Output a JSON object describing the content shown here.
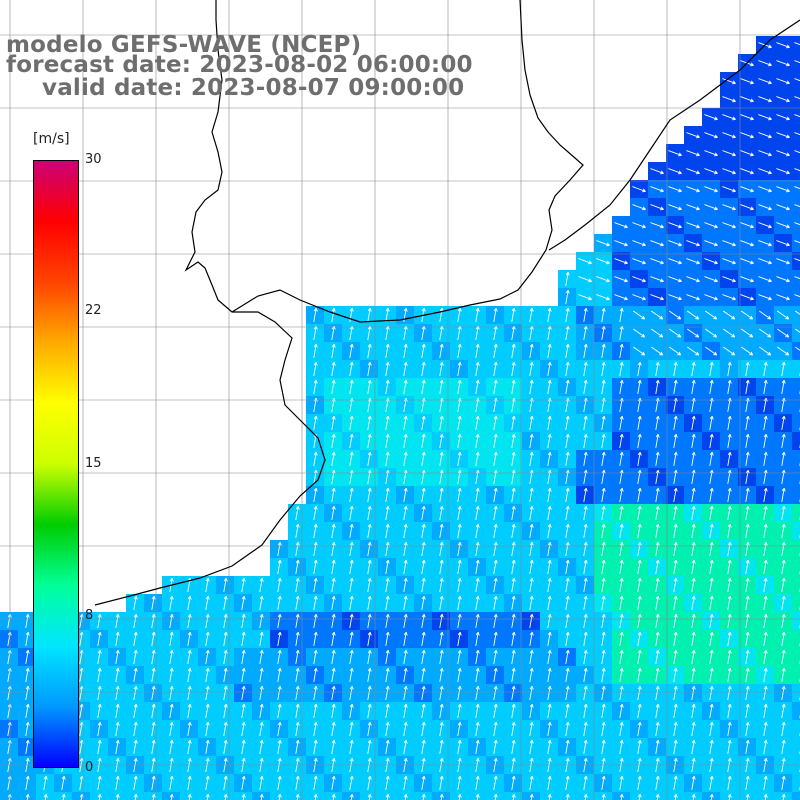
{
  "header": {
    "model": "modelo GEFS-WAVE (NCEP)",
    "forecast": "forecast date: 2023-08-02 06:00:00",
    "valid": "valid date: 2023-08-07 09:00:00"
  },
  "colorbar": {
    "unit": "[m/s]",
    "ticks": [
      "30",
      "22",
      "15",
      "8",
      "0"
    ],
    "colors": [
      "#0000ff",
      "#0099ff",
      "#00e6ff",
      "#00ff99",
      "#00cc00",
      "#ccff00",
      "#ffff00",
      "#ffaa00",
      "#ff4400",
      "#ff0000",
      "#cc0077"
    ]
  },
  "map": {
    "ocean_colors": [
      "#0044ee",
      "#0077ff",
      "#00aaff",
      "#00ccff",
      "#00e5f0",
      "#00f0b0"
    ],
    "arrow_color": "#ffffff",
    "coast_color": "#000000",
    "grid_color": "#888888"
  }
}
